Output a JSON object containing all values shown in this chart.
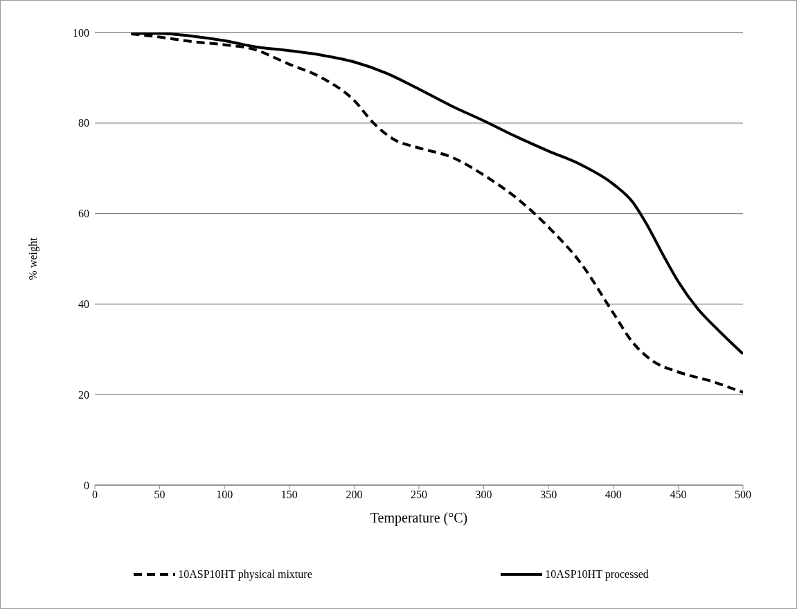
{
  "chart_data": {
    "type": "line",
    "xlabel": "Temperature (°C)",
    "ylabel": "% weight",
    "xlim": [
      0,
      500
    ],
    "xticks": [
      0,
      50,
      100,
      150,
      200,
      250,
      300,
      350,
      400,
      450,
      500
    ],
    "ylim": [
      0,
      100
    ],
    "yticks": [
      0,
      20,
      40,
      60,
      80,
      100
    ],
    "grid": "y",
    "legend": "bottom",
    "marker": "none",
    "series": [
      {
        "name": "10ASP10HT physical mixture",
        "color": "#000000",
        "line_style": "dashed",
        "x": [
          28,
          50,
          75,
          100,
          120,
          150,
          175,
          200,
          215,
          230,
          250,
          275,
          300,
          325,
          350,
          375,
          400,
          415,
          430,
          450,
          475,
          500
        ],
        "values": [
          99.7,
          99,
          98,
          97.3,
          96.5,
          93,
          90,
          85,
          80,
          76.5,
          74.5,
          72.5,
          68.5,
          63.5,
          57,
          49,
          38,
          31.5,
          27.5,
          25,
          23,
          20.5
        ]
      },
      {
        "name": "10ASP10HT processed",
        "color": "#000000",
        "line_style": "solid",
        "x": [
          28,
          50,
          75,
          100,
          125,
          150,
          175,
          200,
          225,
          250,
          275,
          300,
          325,
          350,
          375,
          400,
          415,
          425,
          440,
          450,
          465,
          480,
          500
        ],
        "values": [
          99.8,
          99.8,
          99.2,
          98.2,
          96.8,
          96,
          95,
          93.5,
          91,
          87.5,
          83.8,
          80.5,
          77,
          73.8,
          70.8,
          66.5,
          62.5,
          58,
          50,
          45,
          39,
          34.5,
          29
        ]
      }
    ]
  }
}
